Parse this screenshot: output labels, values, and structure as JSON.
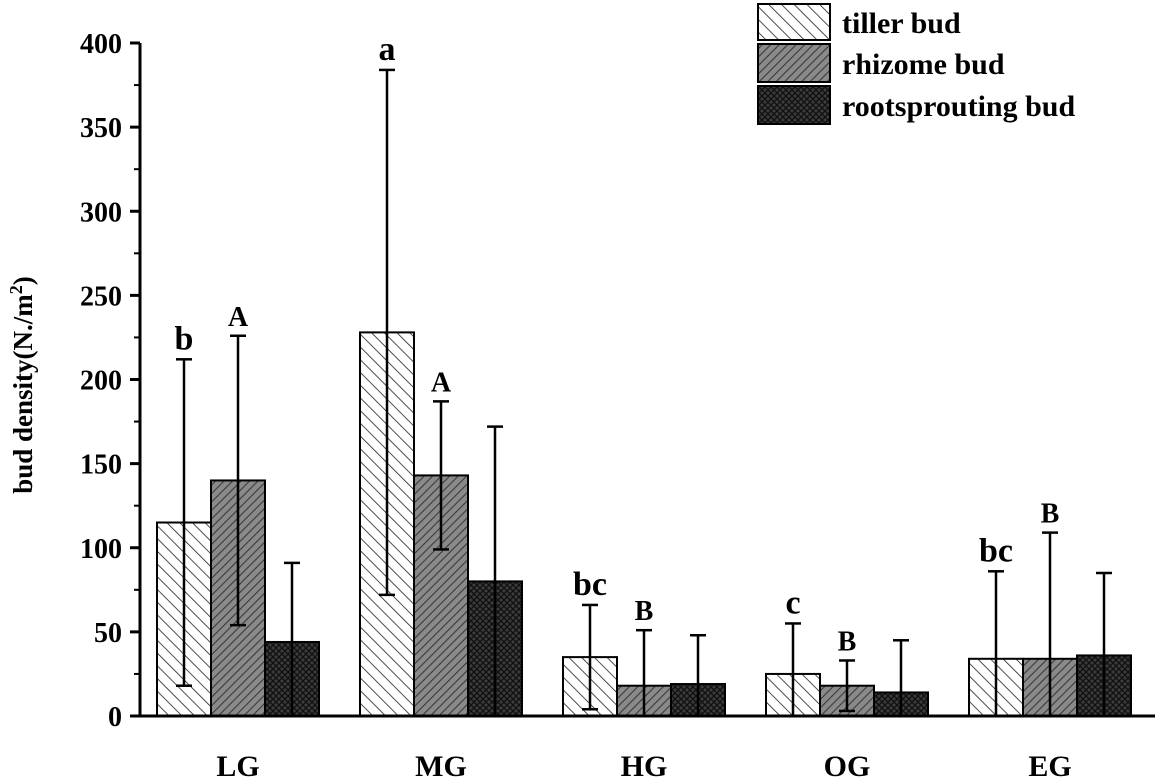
{
  "chart_data": {
    "type": "bar",
    "title": "",
    "xlabel": "",
    "ylabel": "bud density",
    "ylabel_unit_prefix": "(N./m",
    "ylabel_unit_exp": "2",
    "ylabel_unit_suffix": ")",
    "ylim": [
      0,
      400
    ],
    "yticks": [
      0,
      50,
      100,
      150,
      200,
      250,
      300,
      350,
      400
    ],
    "categories": [
      "LG",
      "MG",
      "HG",
      "OG",
      "EG"
    ],
    "series": [
      {
        "name": "tiller bud",
        "pattern": "hatch-light",
        "values": [
          115,
          228,
          35,
          25,
          34
        ],
        "errors": [
          97,
          156,
          31,
          30,
          52
        ],
        "labels": [
          "b",
          "a",
          "bc",
          "c",
          "bc"
        ]
      },
      {
        "name": "rhizome bud",
        "pattern": "hatch-dense",
        "values": [
          140,
          143,
          18,
          18,
          34
        ],
        "errors": [
          86,
          44,
          33,
          15,
          75
        ],
        "labels": [
          "A",
          "A",
          "B",
          "B",
          "B"
        ]
      },
      {
        "name": "rootsprouting bud",
        "pattern": "crosshatch",
        "values": [
          44,
          80,
          19,
          14,
          36
        ],
        "errors": [
          47,
          92,
          29,
          31,
          49
        ],
        "labels": [
          "",
          "",
          "",
          "",
          ""
        ]
      }
    ],
    "legend_position": "top-right",
    "grid": false
  }
}
